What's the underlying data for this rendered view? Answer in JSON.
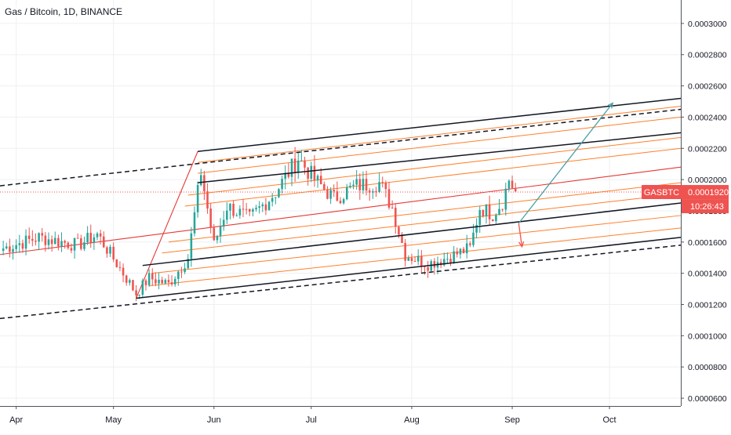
{
  "header": {
    "title": "Gas / Bitcoin, 1D, BINANCE"
  },
  "colors": {
    "up": "#26a69a",
    "down": "#ef5350",
    "channel": "#131722",
    "fib": "#ff7f2a",
    "median": "#e53935",
    "grid": "#eef0f3",
    "arrow_up": "#4a9fa6",
    "arrow_down": "#ef5350",
    "badge": "#ef5350"
  },
  "chart_data": {
    "type": "candlestick",
    "symbol": "GASBTC",
    "timeframe": "1D",
    "exchange": "BINANCE",
    "y_axis": {
      "ticks": [
        "0.0003000",
        "0.0002800",
        "0.0002600",
        "0.0002400",
        "0.0002200",
        "0.0002000",
        "0.0001800",
        "0.0001600",
        "0.0001400",
        "0.0001200",
        "0.0001000",
        "0.0000800",
        "0.0000600"
      ],
      "range": [
        5.5e-05,
        0.000315
      ]
    },
    "x_axis": {
      "ticks": [
        "Apr",
        "May",
        "Jun",
        "Jul",
        "Aug",
        "Sep",
        "Oct"
      ],
      "range": [
        "2019-03-27",
        "2019-10-23"
      ]
    },
    "last_price": {
      "symbol_label": "GASBTC",
      "value_label": "0.0001920",
      "value": 0.000192,
      "countdown": "10:26:43"
    },
    "ohlc_anchors": [
      {
        "date": "2019-03-28",
        "close": 0.000156
      },
      {
        "date": "2019-04-08",
        "close": 0.000163
      },
      {
        "date": "2019-04-20",
        "close": 0.000158
      },
      {
        "date": "2019-04-26",
        "close": 0.000165
      },
      {
        "date": "2019-05-04",
        "close": 0.00014
      },
      {
        "date": "2019-05-08",
        "close": 0.000127
      },
      {
        "date": "2019-05-12",
        "close": 0.000137
      },
      {
        "date": "2019-05-18",
        "close": 0.000133
      },
      {
        "date": "2019-05-24",
        "close": 0.00015
      },
      {
        "date": "2019-05-28",
        "close": 0.000205
      },
      {
        "date": "2019-06-01",
        "close": 0.000158
      },
      {
        "date": "2019-06-05",
        "close": 0.000183
      },
      {
        "date": "2019-06-12",
        "close": 0.000175
      },
      {
        "date": "2019-06-20",
        "close": 0.000192
      },
      {
        "date": "2019-06-27",
        "close": 0.000214
      },
      {
        "date": "2019-07-02",
        "close": 0.0002
      },
      {
        "date": "2019-07-08",
        "close": 0.000188
      },
      {
        "date": "2019-07-15",
        "close": 0.000196
      },
      {
        "date": "2019-07-22",
        "close": 0.000198
      },
      {
        "date": "2019-07-26",
        "close": 0.000182
      },
      {
        "date": "2019-07-30",
        "close": 0.000152
      },
      {
        "date": "2019-08-06",
        "close": 0.000146
      },
      {
        "date": "2019-08-12",
        "close": 0.00015
      },
      {
        "date": "2019-08-19",
        "close": 0.000156
      },
      {
        "date": "2019-08-22",
        "close": 0.000182
      },
      {
        "date": "2019-08-26",
        "close": 0.000178
      },
      {
        "date": "2019-08-29",
        "close": 0.000186
      },
      {
        "date": "2019-08-31",
        "close": 0.0002
      },
      {
        "date": "2019-09-02",
        "close": 0.000192
      }
    ],
    "drawings": {
      "channel_lines": [
        {
          "style": "solid",
          "from": [
            "2019-05-08",
            0.000124
          ],
          "to": [
            "2019-10-23",
            0.000163
          ]
        },
        {
          "style": "solid",
          "from": [
            "2019-05-10",
            0.000145
          ],
          "to": [
            "2019-10-23",
            0.000185
          ]
        },
        {
          "style": "solid",
          "from": [
            "2019-05-27",
            0.000198
          ],
          "to": [
            "2019-10-23",
            0.00023
          ]
        },
        {
          "style": "solid",
          "from": [
            "2019-05-27",
            0.000218
          ],
          "to": [
            "2019-10-23",
            0.000252
          ]
        },
        {
          "style": "dashed",
          "from": [
            "2019-03-27",
            0.000111
          ],
          "to": [
            "2019-10-23",
            0.000158
          ]
        },
        {
          "style": "dashed",
          "from": [
            "2019-03-27",
            0.000196
          ],
          "to": [
            "2019-10-23",
            0.000245
          ]
        }
      ],
      "fib_lines": [
        {
          "from": [
            "2019-05-12",
            0.000132
          ],
          "to": [
            "2019-10-23",
            0.000169
          ]
        },
        {
          "from": [
            "2019-05-13",
            0.00014
          ],
          "to": [
            "2019-10-23",
            0.000177
          ]
        },
        {
          "from": [
            "2019-05-16",
            0.000153
          ],
          "to": [
            "2019-10-23",
            0.000191
          ]
        },
        {
          "from": [
            "2019-05-18",
            0.00016
          ],
          "to": [
            "2019-10-23",
            0.000198
          ]
        },
        {
          "from": [
            "2019-05-23",
            0.000183
          ],
          "to": [
            "2019-10-23",
            0.00022
          ]
        },
        {
          "from": [
            "2019-05-24",
            0.00019
          ],
          "to": [
            "2019-10-23",
            0.000227
          ]
        },
        {
          "from": [
            "2019-05-27",
            0.000204
          ],
          "to": [
            "2019-10-23",
            0.00024
          ]
        },
        {
          "from": [
            "2019-05-27",
            0.000211
          ],
          "to": [
            "2019-10-23",
            0.000247
          ]
        }
      ],
      "median_lines": [
        {
          "from": [
            "2019-05-08",
            0.000124
          ],
          "to": [
            "2019-05-27",
            0.000218
          ]
        },
        {
          "from": [
            "2019-03-27",
            0.000152
          ],
          "to": [
            "2019-10-23",
            0.000208
          ]
        }
      ],
      "projection_arrows": [
        {
          "direction": "up",
          "from": [
            "2019-09-03",
            0.000172
          ],
          "to": [
            "2019-10-02",
            0.000249
          ]
        },
        {
          "direction": "down",
          "from": [
            "2019-09-03",
            0.000172
          ],
          "to": [
            "2019-09-04",
            0.000157
          ]
        }
      ]
    }
  }
}
